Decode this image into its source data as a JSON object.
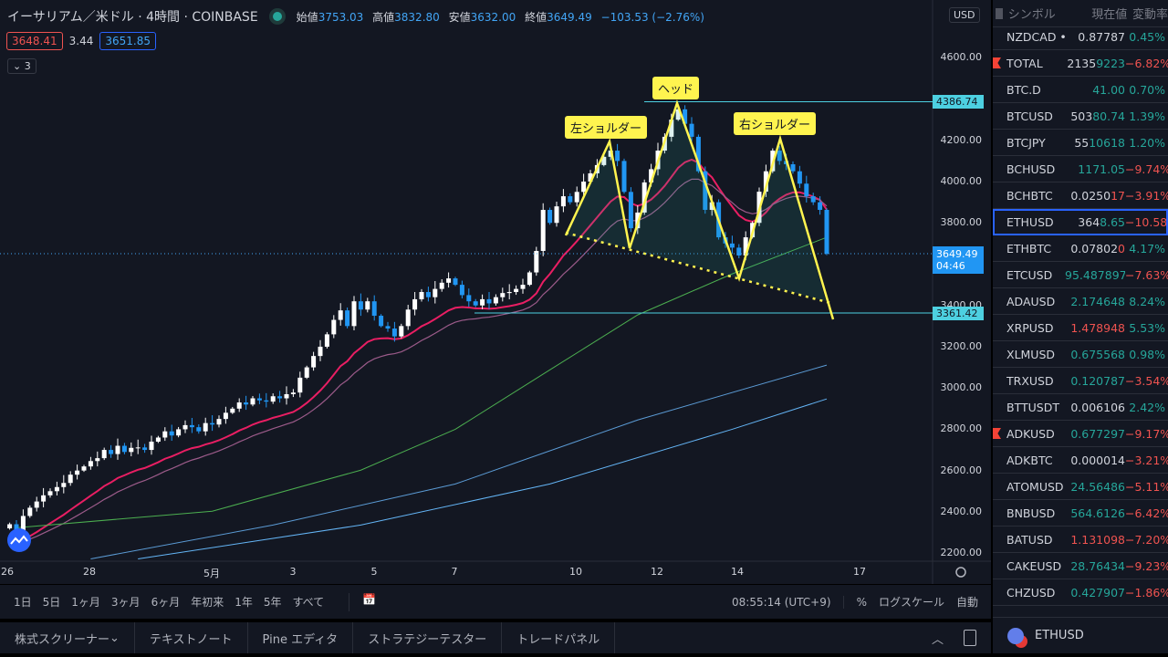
{
  "header": {
    "title": "イーサリアム／米ドル · 4時間 · COINBASE",
    "ohlc": {
      "open_label": "始値",
      "open": "3753.03",
      "high_label": "高値",
      "high": "3832.80",
      "low_label": "安値",
      "low": "3632.00",
      "close_label": "終値",
      "close": "3649.49",
      "change": "−103.53 (−2.76%)"
    },
    "bid": "3648.41",
    "spread": "3.44",
    "ask": "3651.85",
    "collapse": "3"
  },
  "colors": {
    "bg": "#131722",
    "up": "#ffffff",
    "down": "#2196f3",
    "pattern": "#fff44f",
    "level": "#4dd0e1",
    "green": "#26a69a",
    "red": "#ef5350"
  },
  "price_axis": {
    "currency": "USD",
    "ticks": [
      "4600.00",
      "4200.00",
      "4000.00",
      "3800.00",
      "3400.00",
      "3200.00",
      "3000.00",
      "2800.00",
      "2600.00",
      "2400.00",
      "2200.00"
    ],
    "tick_values": [
      4600,
      4200,
      4000,
      3800,
      3400,
      3200,
      3000,
      2800,
      2600,
      2400,
      2200
    ],
    "level_high": "4386.74",
    "level_low": "3361.42",
    "last_price": "3649.49",
    "countdown": "04:46"
  },
  "time_axis": {
    "labels": [
      "26",
      "28",
      "5月",
      "3",
      "5",
      "7",
      "10",
      "12",
      "14",
      "17"
    ]
  },
  "annotations": {
    "left_shoulder": "左ショルダー",
    "head": "ヘッド",
    "right_shoulder": "右ショルダー"
  },
  "candles_close": [
    2340,
    2300,
    2380,
    2420,
    2450,
    2480,
    2500,
    2520,
    2540,
    2580,
    2600,
    2620,
    2646,
    2660,
    2700,
    2680,
    2720,
    2690,
    2710,
    2712,
    2700,
    2740,
    2760,
    2790,
    2770,
    2800,
    2820,
    2810,
    2790,
    2830,
    2823,
    2850,
    2880,
    2900,
    2930,
    2920,
    2950,
    2940,
    2934,
    2960,
    2950,
    2970,
    2978,
    3050,
    3100,
    3155,
    3200,
    3260,
    3330,
    3376,
    3300,
    3420,
    3380,
    3420,
    3350,
    3300,
    3288,
    3250,
    3300,
    3380,
    3430,
    3465,
    3440,
    3480,
    3510,
    3531,
    3500,
    3450,
    3420,
    3400,
    3430,
    3410,
    3440,
    3460,
    3465,
    3480,
    3500,
    3560,
    3664,
    3863,
    3800,
    3880,
    3929,
    3900,
    3950,
    4000,
    4040,
    4080,
    4120,
    4150,
    4100,
    3950,
    3774,
    3850,
    3996,
    4060,
    4150,
    4217,
    4300,
    4350,
    4280,
    4217,
    4050,
    3863,
    3900,
    3730,
    3700,
    3680,
    3642,
    3730,
    3800,
    3951,
    4050,
    4150,
    4100,
    4084,
    4050,
    3990,
    3929,
    3900,
    3863,
    3650
  ],
  "ma_lines": [
    {
      "color": "#4caf50",
      "points": [
        [
          1,
          2323
        ],
        [
          30,
          2403
        ],
        [
          52,
          2602
        ],
        [
          66,
          2800
        ],
        [
          80,
          3088
        ],
        [
          93,
          3354
        ],
        [
          107,
          3553
        ],
        [
          121,
          3730
        ]
      ]
    },
    {
      "color": "#5b9bd5",
      "points": [
        [
          12,
          2172
        ],
        [
          39,
          2336
        ],
        [
          66,
          2535
        ],
        [
          93,
          2845
        ],
        [
          121,
          3111
        ]
      ]
    },
    {
      "color": "#64b5f6",
      "points": [
        [
          19,
          2172
        ],
        [
          52,
          2336
        ],
        [
          80,
          2535
        ],
        [
          107,
          2800
        ],
        [
          121,
          2947
        ]
      ]
    }
  ],
  "range_bar": {
    "ranges": [
      "1日",
      "5日",
      "1ヶ月",
      "3ヶ月",
      "6ヶ月",
      "年初来",
      "1年",
      "5年",
      "すべて"
    ],
    "clock": "08:55:14 (UTC+9)",
    "percent": "%",
    "log": "ログスケール",
    "auto": "自動"
  },
  "bottom_tabs": [
    "株式スクリーナー",
    "テキストノート",
    "Pine エディタ",
    "ストラテジーテスター",
    "トレードパネル"
  ],
  "watchlist": {
    "headers": {
      "symbol": "シンボル",
      "price": "現在値",
      "change": "変動率"
    },
    "rows": [
      {
        "sym": "NZDCAD •",
        "v1": "0.8778",
        "v2": "7",
        "vc": "#d1d4dc",
        "chg": "0.45%",
        "cc": "#26a69a"
      },
      {
        "sym": "TOTAL",
        "v1": "2135",
        "v2": "9223",
        "vc": "#26a69a",
        "chg": "−6.82%",
        "cc": "#ef5350",
        "flag": true
      },
      {
        "sym": "BTC.D",
        "v1": "",
        "v2": "41.00",
        "vc": "#26a69a",
        "chg": "0.70%",
        "cc": "#26a69a"
      },
      {
        "sym": "BTCUSD",
        "v1": "503",
        "v2": "80.74",
        "vc": "#26a69a",
        "chg": "1.39%",
        "cc": "#26a69a"
      },
      {
        "sym": "BTCJPY",
        "v1": "55",
        "v2": "10618",
        "vc": "#26a69a",
        "chg": "1.20%",
        "cc": "#26a69a"
      },
      {
        "sym": "BCHUSD",
        "v1": "",
        "v2": "1171.05",
        "vc": "#26a69a",
        "chg": "−9.74%",
        "cc": "#ef5350"
      },
      {
        "sym": "BCHBTC",
        "v1": "0.0250",
        "v2": "17",
        "vc": "#ef5350",
        "chg": "−3.91%",
        "cc": "#ef5350"
      },
      {
        "sym": "ETHUSD",
        "v1": "364",
        "v2": "8.65",
        "vc": "#26a69a",
        "chg": "−10.58%",
        "cc": "#ef5350",
        "selected": true
      },
      {
        "sym": "ETHBTC",
        "v1": "0.07802",
        "v2": "0",
        "vc": "#ef5350",
        "chg": "4.17%",
        "cc": "#26a69a"
      },
      {
        "sym": "ETCUSD",
        "v1": "",
        "v2": "95.487897",
        "vc": "#26a69a",
        "chg": "−7.63%",
        "cc": "#ef5350"
      },
      {
        "sym": "ADAUSD",
        "v1": "",
        "v2": "2.174648",
        "vc": "#26a69a",
        "chg": "8.24%",
        "cc": "#26a69a"
      },
      {
        "sym": "XRPUSD",
        "v1": "",
        "v2": "1.478948",
        "vc": "#ef5350",
        "chg": "5.53%",
        "cc": "#26a69a"
      },
      {
        "sym": "XLMUSD",
        "v1": "",
        "v2": "0.675568",
        "vc": "#26a69a",
        "chg": "0.98%",
        "cc": "#26a69a"
      },
      {
        "sym": "TRXUSD",
        "v1": "",
        "v2": "0.120787",
        "vc": "#26a69a",
        "chg": "−3.54%",
        "cc": "#ef5350"
      },
      {
        "sym": "BTTUSDT",
        "v1": "0.006106",
        "v2": "",
        "vc": "#d1d4dc",
        "chg": "2.42%",
        "cc": "#26a69a"
      },
      {
        "sym": "ADKUSD",
        "v1": "",
        "v2": "0.677297",
        "vc": "#26a69a",
        "chg": "−9.17%",
        "cc": "#ef5350",
        "flag": true
      },
      {
        "sym": "ADKBTC",
        "v1": "0.000014",
        "v2": "",
        "vc": "#d1d4dc",
        "chg": "−3.21%",
        "cc": "#ef5350"
      },
      {
        "sym": "ATOMUSD",
        "v1": "",
        "v2": "24.56486",
        "vc": "#26a69a",
        "chg": "−5.11%",
        "cc": "#ef5350"
      },
      {
        "sym": "BNBUSD",
        "v1": "",
        "v2": "564.6126",
        "vc": "#26a69a",
        "chg": "−6.42%",
        "cc": "#ef5350"
      },
      {
        "sym": "BATUSD",
        "v1": "",
        "v2": "1.131098",
        "vc": "#ef5350",
        "chg": "−7.20%",
        "cc": "#ef5350"
      },
      {
        "sym": "CAKEUSD",
        "v1": "",
        "v2": "28.76434",
        "vc": "#26a69a",
        "chg": "−9.23%",
        "cc": "#ef5350"
      },
      {
        "sym": "CHZUSD",
        "v1": "",
        "v2": "0.427907",
        "vc": "#26a69a",
        "chg": "−1.86%",
        "cc": "#ef5350"
      }
    ],
    "footer_symbol": "ETHUSD"
  }
}
